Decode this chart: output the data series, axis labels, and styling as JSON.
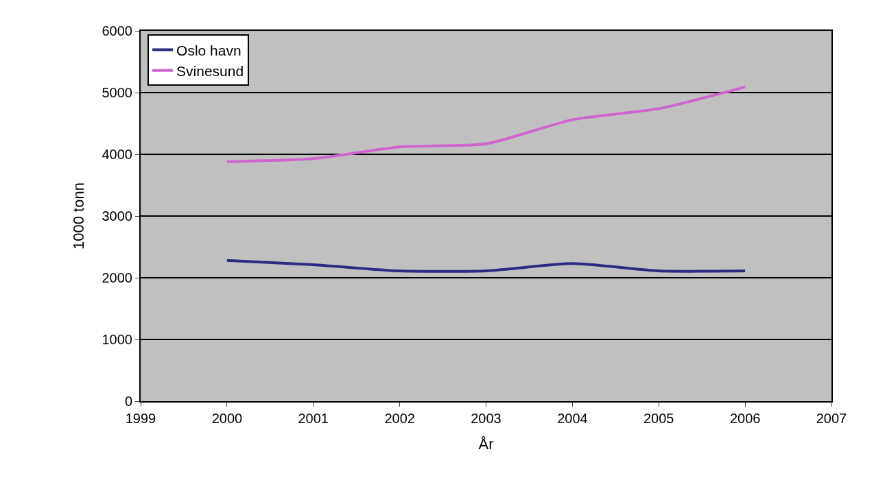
{
  "chart_data": {
    "type": "line",
    "xlabel": "År",
    "ylabel": "1000 tonn",
    "x": [
      2000,
      2001,
      2002,
      2003,
      2004,
      2005,
      2006
    ],
    "series": [
      {
        "name": "Oslo havn",
        "color": "#2b2b80",
        "values": [
          2280,
          2210,
          2110,
          2110,
          2230,
          2110,
          2110
        ]
      },
      {
        "name": "Svinesund",
        "color": "#cc66cc",
        "values": [
          3880,
          3930,
          4120,
          4170,
          4560,
          4740,
          5090
        ]
      }
    ],
    "xlim": [
      1999,
      2007
    ],
    "xticks": [
      1999,
      2000,
      2001,
      2002,
      2003,
      2004,
      2005,
      2006,
      2007
    ],
    "ylim": [
      0,
      6000
    ],
    "yticks": [
      0,
      1000,
      2000,
      3000,
      4000,
      5000,
      6000
    ],
    "grid": "y",
    "legend": "top left",
    "marker": "none",
    "line_style": "solid"
  }
}
